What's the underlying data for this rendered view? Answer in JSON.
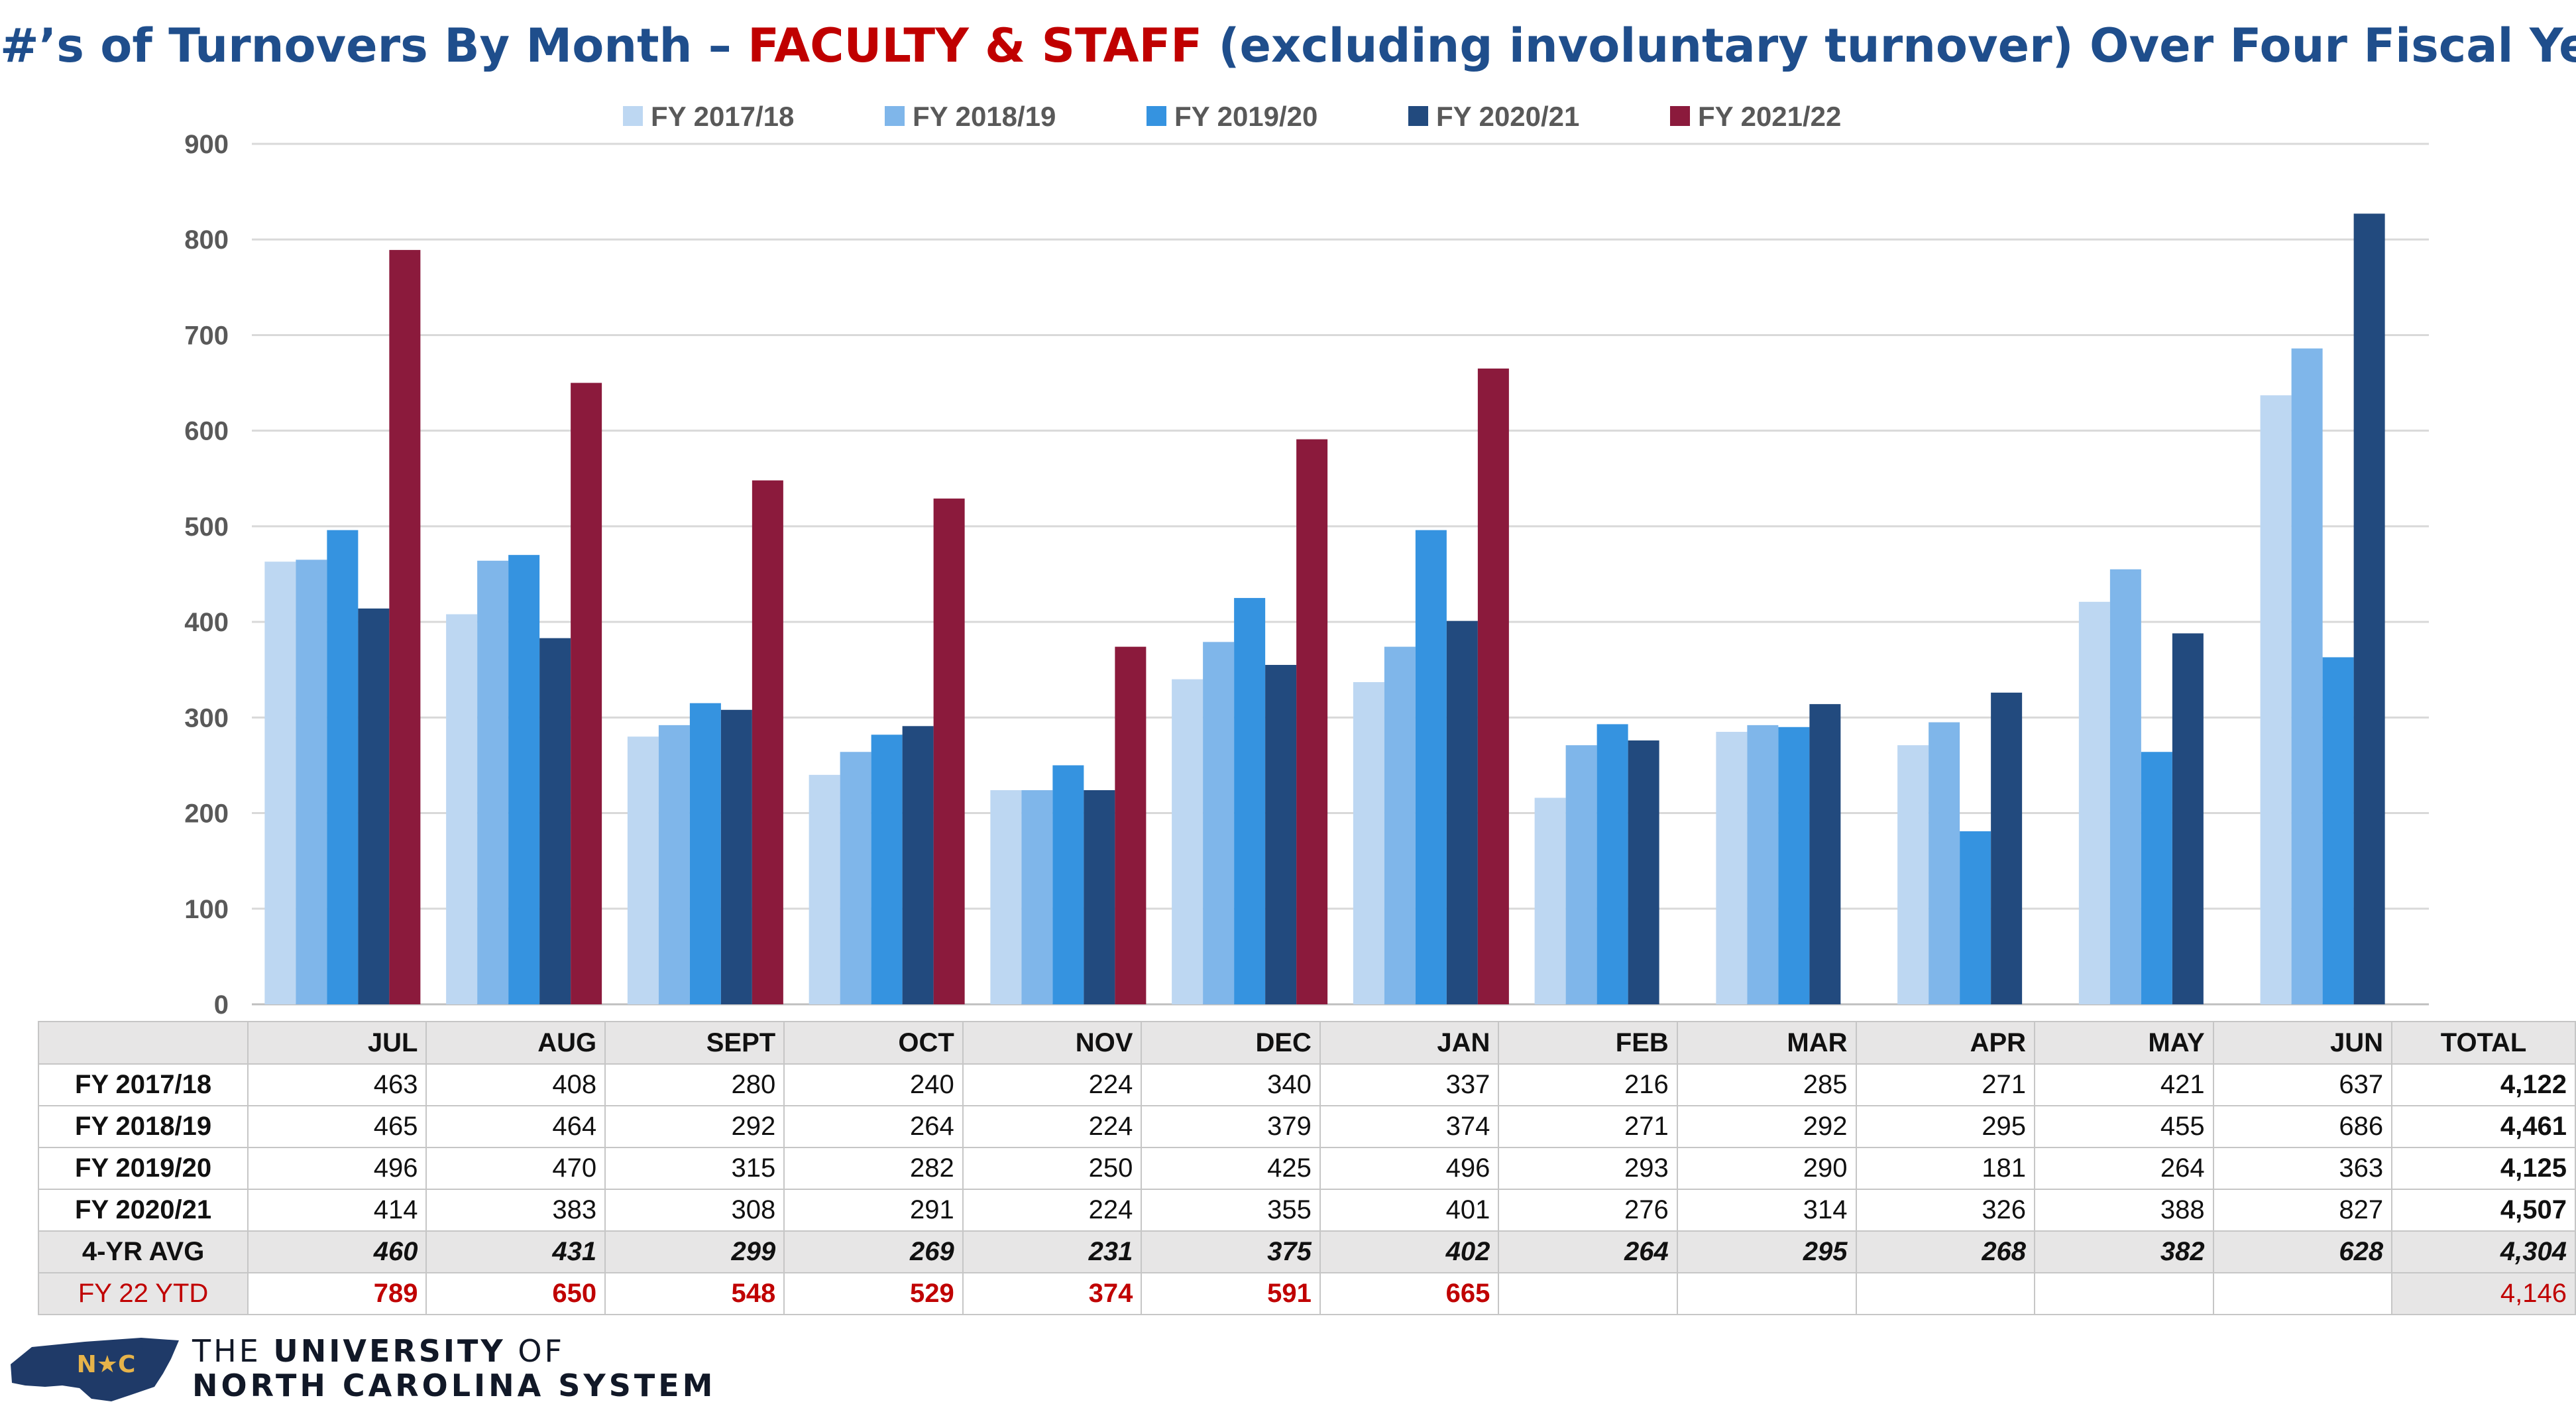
{
  "title": {
    "prefix": "#’s of Turnovers By Month – ",
    "highlight": "FACULTY & STAFF",
    "suffix": " (excluding involuntary turnover) Over Four Fiscal Years"
  },
  "chart_data": {
    "type": "bar",
    "title": "#’s of Turnovers By Month – FACULTY & STAFF (excluding involuntary turnover) Over Four Fiscal Years",
    "categories": [
      "JUL",
      "AUG",
      "SEPT",
      "OCT",
      "NOV",
      "DEC",
      "JAN",
      "FEB",
      "MAR",
      "APR",
      "MAY",
      "JUN"
    ],
    "ylim": [
      0,
      900
    ],
    "yticks": [
      0,
      100,
      200,
      300,
      400,
      500,
      600,
      700,
      800,
      900
    ],
    "grid": true,
    "legend": "top",
    "series": [
      {
        "name": "FY 2017/18",
        "color": "#bdd7f2",
        "values": [
          463,
          408,
          280,
          240,
          224,
          340,
          337,
          216,
          285,
          271,
          421,
          637
        ]
      },
      {
        "name": "FY 2018/19",
        "color": "#7fb6ea",
        "values": [
          465,
          464,
          292,
          264,
          224,
          379,
          374,
          271,
          292,
          295,
          455,
          686
        ]
      },
      {
        "name": "FY 2019/20",
        "color": "#3593e0",
        "values": [
          496,
          470,
          315,
          282,
          250,
          425,
          496,
          293,
          290,
          181,
          264,
          363
        ]
      },
      {
        "name": "FY 2020/21",
        "color": "#224a7e",
        "values": [
          414,
          383,
          308,
          291,
          224,
          355,
          401,
          276,
          314,
          326,
          388,
          827
        ]
      },
      {
        "name": "FY 2021/22",
        "color": "#8b1a3c",
        "values": [
          789,
          650,
          548,
          529,
          374,
          591,
          665,
          null,
          null,
          null,
          null,
          null
        ]
      }
    ]
  },
  "table": {
    "months": [
      "JUL",
      "AUG",
      "SEPT",
      "OCT",
      "NOV",
      "DEC",
      "JAN",
      "FEB",
      "MAR",
      "APR",
      "MAY",
      "JUN"
    ],
    "total_header": "TOTAL",
    "rows": [
      {
        "label": "FY 2017/18",
        "values": [
          "463",
          "408",
          "280",
          "240",
          "224",
          "340",
          "337",
          "216",
          "285",
          "271",
          "421",
          "637"
        ],
        "total": "4,122"
      },
      {
        "label": "FY 2018/19",
        "values": [
          "465",
          "464",
          "292",
          "264",
          "224",
          "379",
          "374",
          "271",
          "292",
          "295",
          "455",
          "686"
        ],
        "total": "4,461"
      },
      {
        "label": "FY 2019/20",
        "values": [
          "496",
          "470",
          "315",
          "282",
          "250",
          "425",
          "496",
          "293",
          "290",
          "181",
          "264",
          "363"
        ],
        "total": "4,125"
      },
      {
        "label": "FY 2020/21",
        "values": [
          "414",
          "383",
          "308",
          "291",
          "224",
          "355",
          "401",
          "276",
          "314",
          "326",
          "388",
          "827"
        ],
        "total": "4,507"
      },
      {
        "label": "4-YR AVG",
        "values": [
          "460",
          "431",
          "299",
          "269",
          "231",
          "375",
          "402",
          "264",
          "295",
          "268",
          "382",
          "628"
        ],
        "total": "4,304"
      },
      {
        "label": "FY 22 YTD",
        "values": [
          "789",
          "650",
          "548",
          "529",
          "374",
          "591",
          "665",
          "",
          "",
          "",
          "",
          ""
        ],
        "total": "4,146"
      }
    ]
  },
  "logo": {
    "badge": "N★C",
    "line1_prefix": "THE ",
    "line1_bold": "UNIVERSITY",
    "line1_suffix": " OF",
    "line2": "NORTH CAROLINA SYSTEM"
  }
}
